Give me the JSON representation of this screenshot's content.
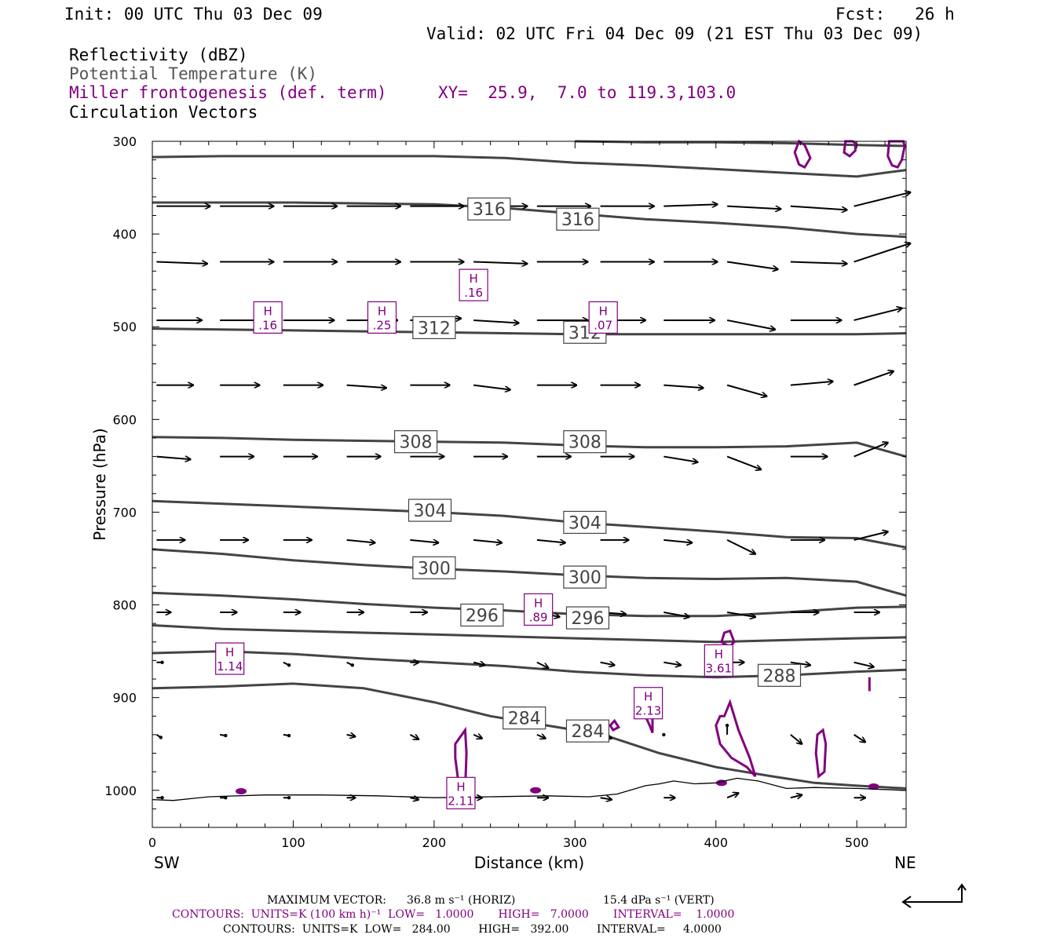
{
  "header": {
    "init": "Init: 00 UTC Thu 03 Dec 09",
    "fcst": "Fcst:   26 h",
    "valid": "Valid: 02 UTC Fri 04 Dec 09 (21 EST Thu 03 Dec 09)",
    "fields": [
      {
        "label": "Reflectivity (dBZ)",
        "color": "#000000"
      },
      {
        "label": "Potential Temperature (K)",
        "color": "#555555"
      },
      {
        "label": "Miller frontogenesis (def. term)",
        "color": "#800080"
      },
      {
        "label": "Circulation Vectors",
        "color": "#000000"
      }
    ],
    "xy": "XY=  25.9,  7.0 to 119.3,103.0"
  },
  "footer": {
    "max_vector_label": "MAXIMUM VECTOR:",
    "max_vector_horiz": "36.8 m s⁻¹ (HORIZ)",
    "max_vector_vert": "15.4 dPa s⁻¹ (VERT)",
    "contours_fronto": "CONTOURS:  UNITS=K (100 km h)⁻¹  LOW=   1.0000       HIGH=   7.0000       INTERVAL=    1.0000",
    "contours_theta": "CONTOURS:  UNITS=K  LOW=   284.00        HIGH=   392.00        INTERVAL=     4.0000"
  },
  "chart_data": {
    "type": "cross-section",
    "xlabel": "Distance (km)",
    "ylabel": "Pressure (hPa)",
    "xlim": [
      0,
      535
    ],
    "ylim": [
      1040,
      300
    ],
    "xticks": [
      0,
      100,
      200,
      300,
      400,
      500
    ],
    "yticks": [
      300,
      400,
      500,
      600,
      700,
      800,
      900,
      1000
    ],
    "x_end_labels": {
      "left": "SW",
      "right": "NE"
    },
    "colors": {
      "theta": "#444444",
      "fronto": "#800080",
      "vector": "#000000",
      "terrain": "#000000"
    },
    "theta_contours": [
      {
        "value": 284,
        "x": [
          0,
          50,
          100,
          150,
          200,
          240,
          280,
          320,
          360,
          400,
          440,
          470,
          500,
          535
        ],
        "p": [
          890,
          888,
          885,
          890,
          905,
          920,
          930,
          940,
          960,
          975,
          985,
          992,
          995,
          998
        ]
      },
      {
        "value": 288,
        "x": [
          0,
          50,
          100,
          150,
          200,
          250,
          300,
          350,
          400,
          450,
          500,
          535
        ],
        "p": [
          852,
          850,
          853,
          858,
          862,
          866,
          872,
          876,
          878,
          876,
          872,
          870
        ]
      },
      {
        "value": 292,
        "x": [
          0,
          50,
          100,
          150,
          200,
          250,
          300,
          350,
          400,
          450,
          500,
          535
        ],
        "p": [
          822,
          826,
          828,
          830,
          832,
          834,
          836,
          838,
          840,
          838,
          836,
          835
        ]
      },
      {
        "value": 296,
        "x": [
          0,
          50,
          100,
          150,
          200,
          250,
          300,
          350,
          400,
          450,
          500,
          535
        ],
        "p": [
          787,
          790,
          794,
          799,
          803,
          806,
          810,
          812,
          812,
          808,
          803,
          802
        ]
      },
      {
        "value": 300,
        "x": [
          0,
          50,
          100,
          150,
          200,
          250,
          300,
          350,
          400,
          450,
          500,
          535
        ],
        "p": [
          740,
          745,
          752,
          757,
          761,
          764,
          768,
          771,
          772,
          771,
          775,
          790
        ]
      },
      {
        "value": 304,
        "x": [
          0,
          50,
          100,
          150,
          200,
          250,
          300,
          350,
          400,
          450,
          500,
          535
        ],
        "p": [
          688,
          691,
          694,
          697,
          700,
          704,
          711,
          716,
          721,
          727,
          728,
          738
        ]
      },
      {
        "value": 308,
        "x": [
          0,
          50,
          100,
          150,
          200,
          250,
          300,
          350,
          400,
          450,
          500,
          535
        ],
        "p": [
          619,
          620,
          622,
          623,
          624,
          625,
          628,
          630,
          630,
          629,
          625,
          640
        ]
      },
      {
        "value": 312,
        "x": [
          0,
          50,
          100,
          150,
          200,
          250,
          300,
          350,
          400,
          450,
          500,
          535
        ],
        "p": [
          502,
          503,
          504,
          505,
          506,
          507,
          508,
          508,
          508,
          508,
          508,
          507
        ]
      },
      {
        "value": 316,
        "x": [
          0,
          50,
          100,
          150,
          200,
          250,
          300,
          350,
          400,
          450,
          500,
          535
        ],
        "p": [
          366,
          366,
          366,
          367,
          368,
          372,
          378,
          384,
          388,
          393,
          400,
          403
        ]
      },
      {
        "value": 320,
        "x": [
          0,
          50,
          100,
          150,
          200,
          250,
          300,
          350,
          400,
          450,
          500,
          535
        ],
        "p": [
          317,
          316,
          316,
          316,
          316,
          318,
          323,
          326,
          330,
          334,
          338,
          331
        ]
      },
      {
        "value": 324,
        "x": [
          300,
          350,
          400,
          450,
          500,
          535
        ],
        "p": [
          300,
          301,
          301,
          302,
          304,
          305
        ]
      }
    ],
    "theta_labels": [
      {
        "text": "316",
        "x": 239,
        "p": 373
      },
      {
        "text": "316",
        "x": 302,
        "p": 384
      },
      {
        "text": "312",
        "x": 200,
        "p": 501
      },
      {
        "text": "312",
        "x": 307,
        "p": 506
      },
      {
        "text": "308",
        "x": 187,
        "p": 624
      },
      {
        "text": "308",
        "x": 307,
        "p": 624
      },
      {
        "text": "304",
        "x": 197,
        "p": 698
      },
      {
        "text": "304",
        "x": 307,
        "p": 711
      },
      {
        "text": "300",
        "x": 200,
        "p": 760
      },
      {
        "text": "300",
        "x": 307,
        "p": 770
      },
      {
        "text": "296",
        "x": 234,
        "p": 811
      },
      {
        "text": "296",
        "x": 309,
        "p": 814
      },
      {
        "text": "288",
        "x": 445,
        "p": 876
      },
      {
        "text": "284",
        "x": 264,
        "p": 922
      },
      {
        "text": "284",
        "x": 309,
        "p": 936
      }
    ],
    "fronto_maxima": [
      {
        "label": "H",
        "value": ".16",
        "x": 228,
        "p": 455
      },
      {
        "label": "H",
        "value": ".16",
        "x": 82,
        "p": 490
      },
      {
        "label": "H",
        "value": ".25",
        "x": 163,
        "p": 490
      },
      {
        "label": "H",
        "value": ".07",
        "x": 320,
        "p": 490
      },
      {
        "label": "H",
        "value": ".89",
        "x": 274,
        "p": 805
      },
      {
        "label": "H",
        "value": "1.14",
        "x": 55,
        "p": 858
      },
      {
        "label": "H",
        "value": "3.61",
        "x": 402,
        "p": 860
      },
      {
        "label": "H",
        "value": "2.13",
        "x": 352,
        "p": 906
      },
      {
        "label": "H",
        "value": "2.11",
        "x": 219,
        "p": 1003
      }
    ],
    "fronto_contours": [
      {
        "x": [
          459,
          456,
          459,
          463,
          467,
          463,
          459
        ],
        "p": [
          300,
          312,
          325,
          328,
          318,
          304,
          300
        ]
      },
      {
        "x": [
          492,
          491,
          495,
          499,
          499,
          497
        ],
        "p": [
          300,
          312,
          316,
          310,
          302,
          300
        ]
      },
      {
        "x": [
          523,
          522,
          525,
          529,
          532,
          534,
          533
        ],
        "p": [
          300,
          316,
          326,
          328,
          320,
          305,
          300
        ]
      },
      {
        "x": [
          218,
          215,
          215,
          222,
          223,
          222,
          218
        ],
        "p": [
          1000,
          965,
          950,
          935,
          960,
          1000,
          1000
        ]
      },
      {
        "x": [
          403,
          400,
          403,
          411,
          422,
          428,
          424,
          416,
          410,
          406,
          403
        ],
        "p": [
          920,
          930,
          950,
          965,
          975,
          985,
          965,
          935,
          905,
          920,
          920
        ]
      },
      {
        "x": [
          404,
          406,
          410,
          413,
          410,
          406,
          404
        ],
        "p": [
          840,
          830,
          828,
          840,
          845,
          842,
          840
        ]
      },
      {
        "x": [
          471,
          472,
          476,
          478,
          477,
          473,
          471
        ],
        "p": [
          960,
          940,
          935,
          950,
          980,
          985,
          960
        ]
      },
      {
        "x": [
          353,
          350,
          352,
          355,
          355,
          353
        ],
        "p": [
          930,
          920,
          915,
          922,
          938,
          930
        ]
      },
      {
        "x": [
          327,
          325,
          328,
          331,
          327
        ],
        "p": [
          935,
          930,
          925,
          932,
          935
        ]
      }
    ],
    "terrain": {
      "x": [
        0,
        15,
        40,
        80,
        120,
        160,
        200,
        240,
        280,
        310,
        330,
        350,
        360,
        370,
        385,
        400,
        415,
        430,
        450,
        470,
        500,
        535
      ],
      "p": [
        1010,
        1011,
        1007,
        1005,
        1005,
        1006,
        1008,
        1007,
        1006,
        1007,
        1004,
        995,
        993,
        990,
        993,
        992,
        987,
        990,
        998,
        997,
        998,
        1000
      ]
    },
    "vector_rows": [
      {
        "p": 370,
        "x": [
          3,
          48,
          93,
          138,
          183,
          228,
          273,
          318,
          363,
          408,
          453,
          498
        ],
        "du": [
          38,
          38,
          38,
          38,
          38,
          38,
          38,
          38,
          38,
          38,
          40,
          40
        ],
        "dp": [
          0,
          0,
          0,
          0,
          0,
          0,
          0,
          0,
          -2,
          3,
          4,
          -15
        ]
      },
      {
        "p": 430,
        "x": [
          3,
          48,
          93,
          138,
          183,
          228,
          273,
          318,
          363,
          408,
          453,
          498
        ],
        "du": [
          36,
          38,
          38,
          38,
          38,
          38,
          36,
          38,
          38,
          36,
          40,
          40
        ],
        "dp": [
          2,
          0,
          0,
          0,
          0,
          2,
          0,
          0,
          0,
          8,
          2,
          -20
        ]
      },
      {
        "p": 493,
        "x": [
          3,
          48,
          93,
          138,
          183,
          228,
          273,
          318,
          363,
          408,
          453,
          498
        ],
        "du": [
          32,
          36,
          36,
          36,
          36,
          32,
          36,
          32,
          36,
          34,
          36,
          34
        ],
        "dp": [
          0,
          0,
          0,
          0,
          -2,
          3,
          0,
          0,
          0,
          10,
          0,
          -13
        ]
      },
      {
        "p": 563,
        "x": [
          3,
          48,
          93,
          138,
          183,
          228,
          273,
          318,
          363,
          408,
          453,
          498
        ],
        "du": [
          26,
          28,
          28,
          28,
          28,
          26,
          28,
          28,
          28,
          28,
          30,
          28
        ],
        "dp": [
          0,
          0,
          0,
          3,
          0,
          5,
          0,
          0,
          3,
          12,
          -4,
          -15
        ]
      },
      {
        "p": 640,
        "x": [
          3,
          48,
          93,
          138,
          183,
          228,
          273,
          318,
          363,
          408,
          453,
          498
        ],
        "du": [
          24,
          24,
          24,
          24,
          24,
          24,
          24,
          24,
          24,
          24,
          26,
          24
        ],
        "dp": [
          3,
          0,
          0,
          0,
          0,
          0,
          0,
          0,
          6,
          14,
          0,
          -15
        ]
      },
      {
        "p": 730,
        "x": [
          3,
          48,
          93,
          138,
          183,
          228,
          273,
          318,
          363,
          408,
          453,
          498
        ],
        "du": [
          20,
          20,
          20,
          20,
          20,
          20,
          20,
          20,
          20,
          20,
          24,
          24
        ],
        "dp": [
          0,
          0,
          0,
          3,
          3,
          3,
          3,
          0,
          3,
          15,
          0,
          -9
        ]
      },
      {
        "p": 808,
        "x": [
          3,
          48,
          93,
          138,
          183,
          228,
          273,
          318,
          363,
          408,
          453,
          498
        ],
        "du": [
          10,
          12,
          12,
          12,
          12,
          14,
          16,
          18,
          18,
          20,
          20,
          18
        ],
        "dp": [
          0,
          0,
          0,
          0,
          0,
          3,
          5,
          2,
          5,
          5,
          0,
          0
        ]
      },
      {
        "p": 862,
        "x": [
          3,
          48,
          93,
          138,
          183,
          228,
          273,
          318,
          363,
          408,
          453,
          498
        ],
        "du": [
          4,
          4,
          4,
          4,
          6,
          8,
          8,
          10,
          12,
          12,
          14,
          14
        ],
        "dp": [
          0,
          2,
          3,
          3,
          0,
          3,
          6,
          3,
          3,
          0,
          3,
          5
        ]
      },
      {
        "p": 940,
        "x": [
          3,
          48,
          93,
          138,
          183,
          228,
          273,
          318,
          363,
          408,
          453,
          498
        ],
        "du": [
          3,
          4,
          4,
          6,
          6,
          6,
          6,
          8,
          0,
          0,
          8,
          8
        ],
        "dp": [
          3,
          1,
          1,
          2,
          5,
          4,
          4,
          4,
          0,
          -10,
          10,
          8
        ]
      },
      {
        "p": 1008,
        "x": [
          3,
          48,
          93,
          138,
          183,
          228,
          273,
          318,
          363,
          408,
          453,
          498
        ],
        "du": [
          4,
          4,
          4,
          6,
          6,
          6,
          8,
          8,
          8,
          8,
          8,
          8
        ],
        "dp": [
          0,
          0,
          0,
          0,
          2,
          0,
          0,
          2,
          0,
          -5,
          -3,
          0
        ]
      }
    ]
  }
}
